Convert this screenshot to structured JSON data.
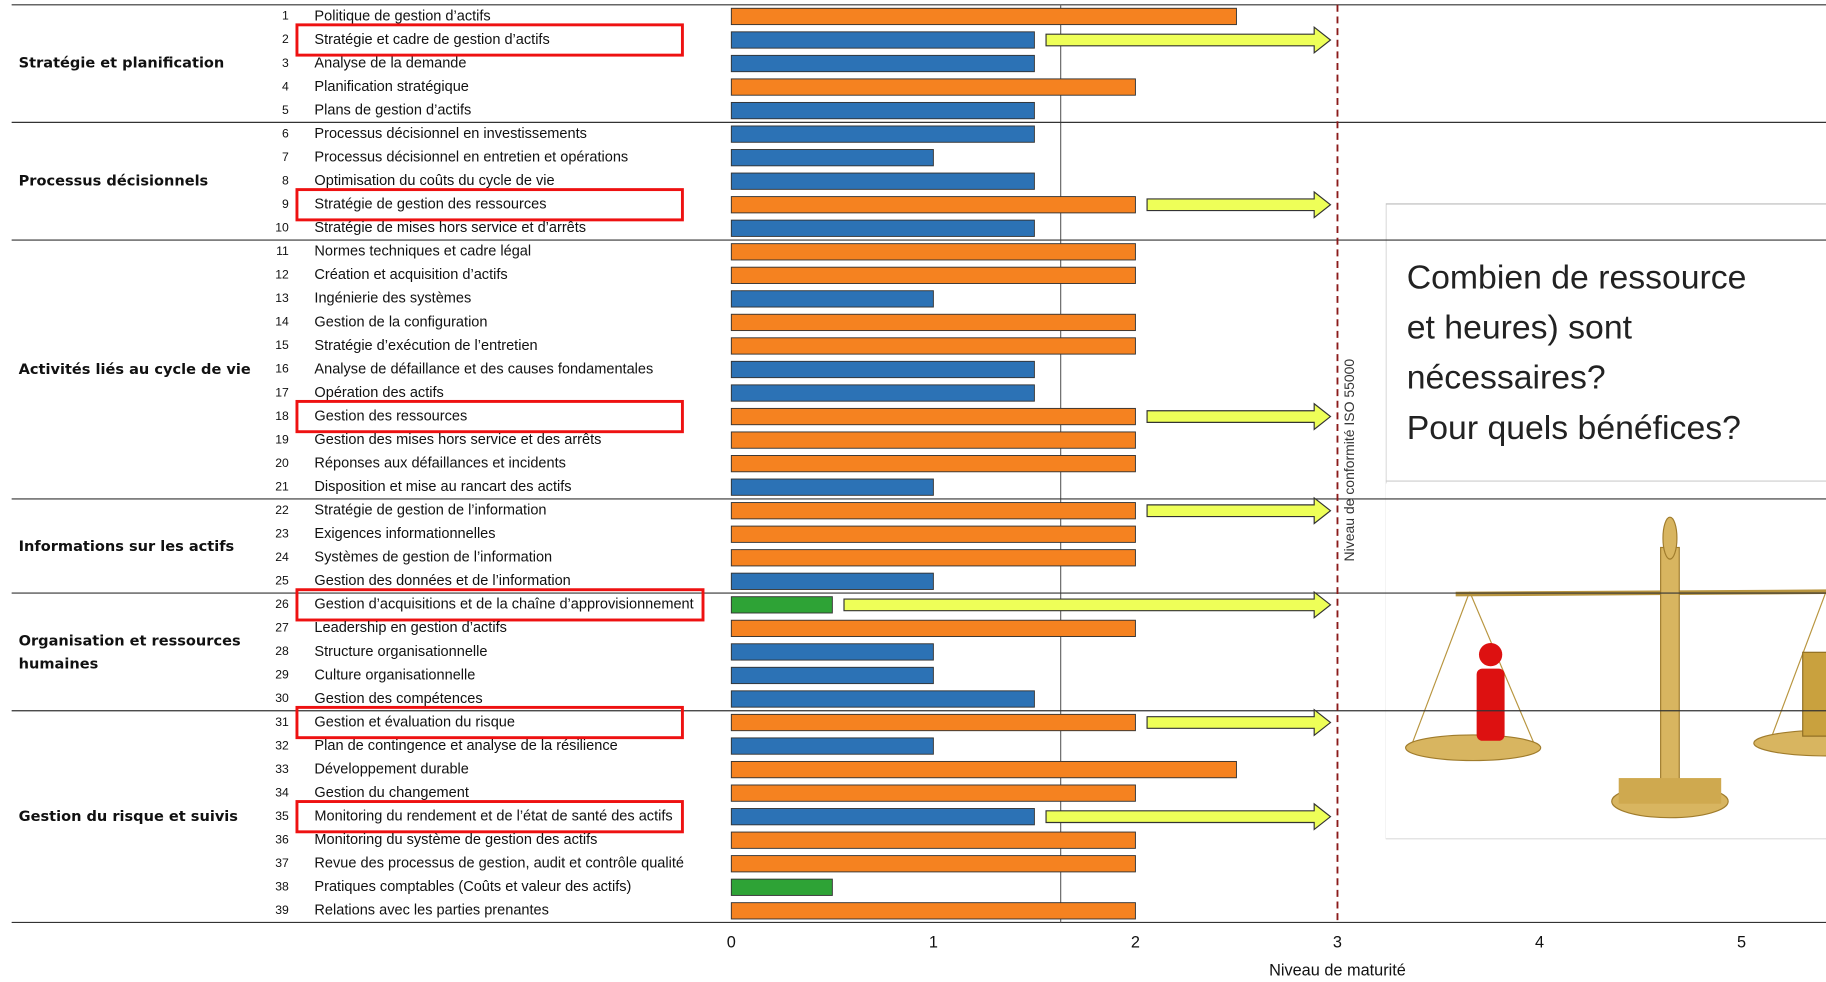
{
  "chart_data": {
    "type": "bar",
    "x_label": "Niveau de maturité",
    "xlim": [
      0,
      5
    ],
    "xticks": [
      0,
      1,
      2,
      3,
      4,
      5
    ],
    "reference_line": {
      "value": 3,
      "label": "Niveau de conformité ISO 55000",
      "color": "#8b1a1a"
    },
    "average_line": 1.63,
    "arrow_color": "#eeff58",
    "highlight_color": "#ee1111",
    "groups": [
      {
        "name": "Stratégie et planification",
        "numbers": [
          1,
          2,
          3,
          4,
          5
        ],
        "categories": [
          "Politique de gestion d’actifs",
          "Stratégie et  cadre de gestion d’actifs",
          "Analyse de la demande",
          "Planification stratégique",
          "Plans de gestion d’actifs"
        ],
        "values": [
          2.5,
          1.5,
          1.5,
          2,
          1.5
        ],
        "colors": [
          "#f58220",
          "#2c72b5",
          "#2c72b5",
          "#f58220",
          "#2c72b5"
        ],
        "highlighted": [
          false,
          true,
          false,
          false,
          false
        ],
        "arrows": [
          false,
          true,
          false,
          false,
          false
        ]
      },
      {
        "name": "Processus décisionnels",
        "numbers": [
          6,
          7,
          8,
          9,
          10
        ],
        "categories": [
          "Processus décisionnel en investissements",
          "Processus décisionnel en entretien et opérations",
          "Optimisation du coûts du cycle de vie",
          "Stratégie de gestion des ressources",
          "Stratégie de mises hors service et d’arrêts"
        ],
        "values": [
          1.5,
          1,
          1.5,
          2,
          1.5
        ],
        "colors": [
          "#2c72b5",
          "#2c72b5",
          "#2c72b5",
          "#f58220",
          "#2c72b5"
        ],
        "highlighted": [
          false,
          false,
          false,
          true,
          false
        ],
        "arrows": [
          false,
          false,
          false,
          true,
          false
        ]
      },
      {
        "name": "Activités liés au cycle de vie",
        "numbers": [
          11,
          12,
          13,
          14,
          15,
          16,
          17,
          18,
          19,
          20,
          21
        ],
        "categories": [
          "Normes techniques et cadre légal",
          "Création et acquisition d’actifs",
          "Ingénierie des systèmes",
          "Gestion de la configuration",
          "Stratégie d’exécution de l’entretien",
          "Analyse de défaillance et des causes fondamentales",
          "Opération des actifs",
          "Gestion des ressources",
          "Gestion des mises hors service et des arrêts",
          "Réponses aux défaillances et incidents",
          "Disposition et mise au rancart des actifs"
        ],
        "values": [
          2,
          2,
          1,
          2,
          2,
          1.5,
          1.5,
          2,
          2,
          2,
          1
        ],
        "colors": [
          "#f58220",
          "#f58220",
          "#2c72b5",
          "#f58220",
          "#f58220",
          "#2c72b5",
          "#2c72b5",
          "#f58220",
          "#f58220",
          "#f58220",
          "#2c72b5"
        ],
        "highlighted": [
          false,
          false,
          false,
          false,
          false,
          false,
          false,
          true,
          false,
          false,
          false
        ],
        "arrows": [
          false,
          false,
          false,
          false,
          false,
          false,
          false,
          true,
          false,
          false,
          false
        ]
      },
      {
        "name": "Informations sur les actifs",
        "numbers": [
          22,
          23,
          24,
          25
        ],
        "categories": [
          "Stratégie de gestion de l’information",
          "Exigences informationnelles",
          "Systèmes de gestion de l’information",
          "Gestion des données et de l’information"
        ],
        "values": [
          2,
          2,
          2,
          1
        ],
        "colors": [
          "#f58220",
          "#f58220",
          "#f58220",
          "#2c72b5"
        ],
        "highlighted": [
          false,
          false,
          false,
          false
        ],
        "arrows": [
          true,
          false,
          false,
          false
        ]
      },
      {
        "name": "Organisation et ressources humaines",
        "numbers": [
          26,
          27,
          28,
          29,
          30
        ],
        "categories": [
          "Gestion d’acquisitions et de la chaîne d’approvisionnement",
          "Leadership en gestion d’actifs",
          "Structure  organisationnelle",
          "Culture organisationnelle",
          "Gestion des compétences"
        ],
        "values": [
          0.5,
          2,
          1,
          1,
          1.5
        ],
        "colors": [
          "#2ea336",
          "#f58220",
          "#2c72b5",
          "#2c72b5",
          "#2c72b5"
        ],
        "highlighted": [
          true,
          false,
          false,
          false,
          false
        ],
        "arrows": [
          true,
          false,
          false,
          false,
          false
        ]
      },
      {
        "name": "Gestion du risque et suivis",
        "numbers": [
          31,
          32,
          33,
          34,
          35,
          36,
          37,
          38,
          39
        ],
        "categories": [
          "Gestion et évaluation du risque",
          "Plan de contingence et analyse de la résilience",
          "Développement durable",
          "Gestion du changement",
          "Monitoring du rendement et de l’état de santé des actifs",
          "Monitoring du système de gestion des actifs",
          "Revue des processus de gestion, audit et contrôle qualité",
          "Pratiques comptables (Coûts et valeur des actifs)",
          "Relations avec les parties prenantes"
        ],
        "values": [
          2,
          1,
          2.5,
          2,
          1.5,
          2,
          2,
          0.5,
          2
        ],
        "colors": [
          "#f58220",
          "#2c72b5",
          "#f58220",
          "#f58220",
          "#2c72b5",
          "#f58220",
          "#f58220",
          "#2ea336",
          "#f58220"
        ],
        "highlighted": [
          true,
          false,
          false,
          false,
          true,
          false,
          false,
          false,
          false
        ],
        "arrows": [
          true,
          false,
          false,
          false,
          true,
          false,
          false,
          false,
          false
        ]
      }
    ],
    "callout": {
      "lines": [
        "Combien de ressource",
        "et heures) sont",
        "nécessaires?",
        "Pour quels bénéfices?"
      ]
    }
  }
}
